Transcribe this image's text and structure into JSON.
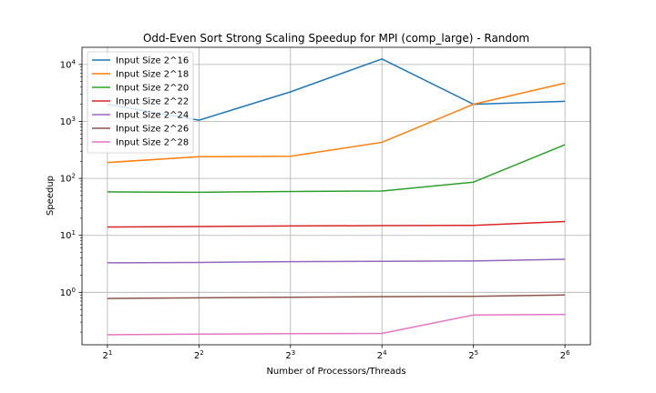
{
  "chart_data": {
    "type": "line",
    "title": "Odd-Even Sort Strong Scaling Speedup for MPI (comp_large) - Random",
    "xlabel": "Number of Processors/Threads",
    "ylabel": "Speedup",
    "x": [
      2,
      4,
      8,
      16,
      32,
      64
    ],
    "x_tick_labels": [
      {
        "base": "2",
        "exp": "1"
      },
      {
        "base": "2",
        "exp": "2"
      },
      {
        "base": "2",
        "exp": "3"
      },
      {
        "base": "2",
        "exp": "4"
      },
      {
        "base": "2",
        "exp": "5"
      },
      {
        "base": "2",
        "exp": "6"
      }
    ],
    "x_scale": "log2",
    "y_scale": "log10",
    "ylim": [
      0.12,
      20000
    ],
    "y_tick_labels": [
      {
        "base": "10",
        "exp": "0",
        "value": 1
      },
      {
        "base": "10",
        "exp": "1",
        "value": 10
      },
      {
        "base": "10",
        "exp": "2",
        "value": 100
      },
      {
        "base": "10",
        "exp": "3",
        "value": 1000
      },
      {
        "base": "10",
        "exp": "4",
        "value": 10000
      }
    ],
    "grid": true,
    "legend_position": "top-left",
    "series": [
      {
        "name": "Input Size 2^16",
        "color": "#1f77b4",
        "values": [
          2000,
          1050,
          3300,
          12500,
          2000,
          2250
        ]
      },
      {
        "name": "Input Size 2^18",
        "color": "#ff7f0e",
        "values": [
          190,
          240,
          245,
          430,
          2000,
          4700
        ]
      },
      {
        "name": "Input Size 2^20",
        "color": "#2ca02c",
        "values": [
          58,
          57,
          59,
          60,
          86,
          390
        ]
      },
      {
        "name": "Input Size 2^22",
        "color": "#d62728",
        "values": [
          14,
          14.3,
          14.6,
          14.8,
          15,
          17.5
        ]
      },
      {
        "name": "Input Size 2^24",
        "color": "#9467bd",
        "values": [
          3.3,
          3.35,
          3.45,
          3.5,
          3.55,
          3.8
        ]
      },
      {
        "name": "Input Size 2^26",
        "color": "#8c564b",
        "values": [
          0.78,
          0.8,
          0.82,
          0.84,
          0.85,
          0.9
        ]
      },
      {
        "name": "Input Size 2^28",
        "color": "#e377c2",
        "values": [
          0.18,
          0.185,
          0.188,
          0.19,
          0.4,
          0.41
        ]
      }
    ]
  }
}
